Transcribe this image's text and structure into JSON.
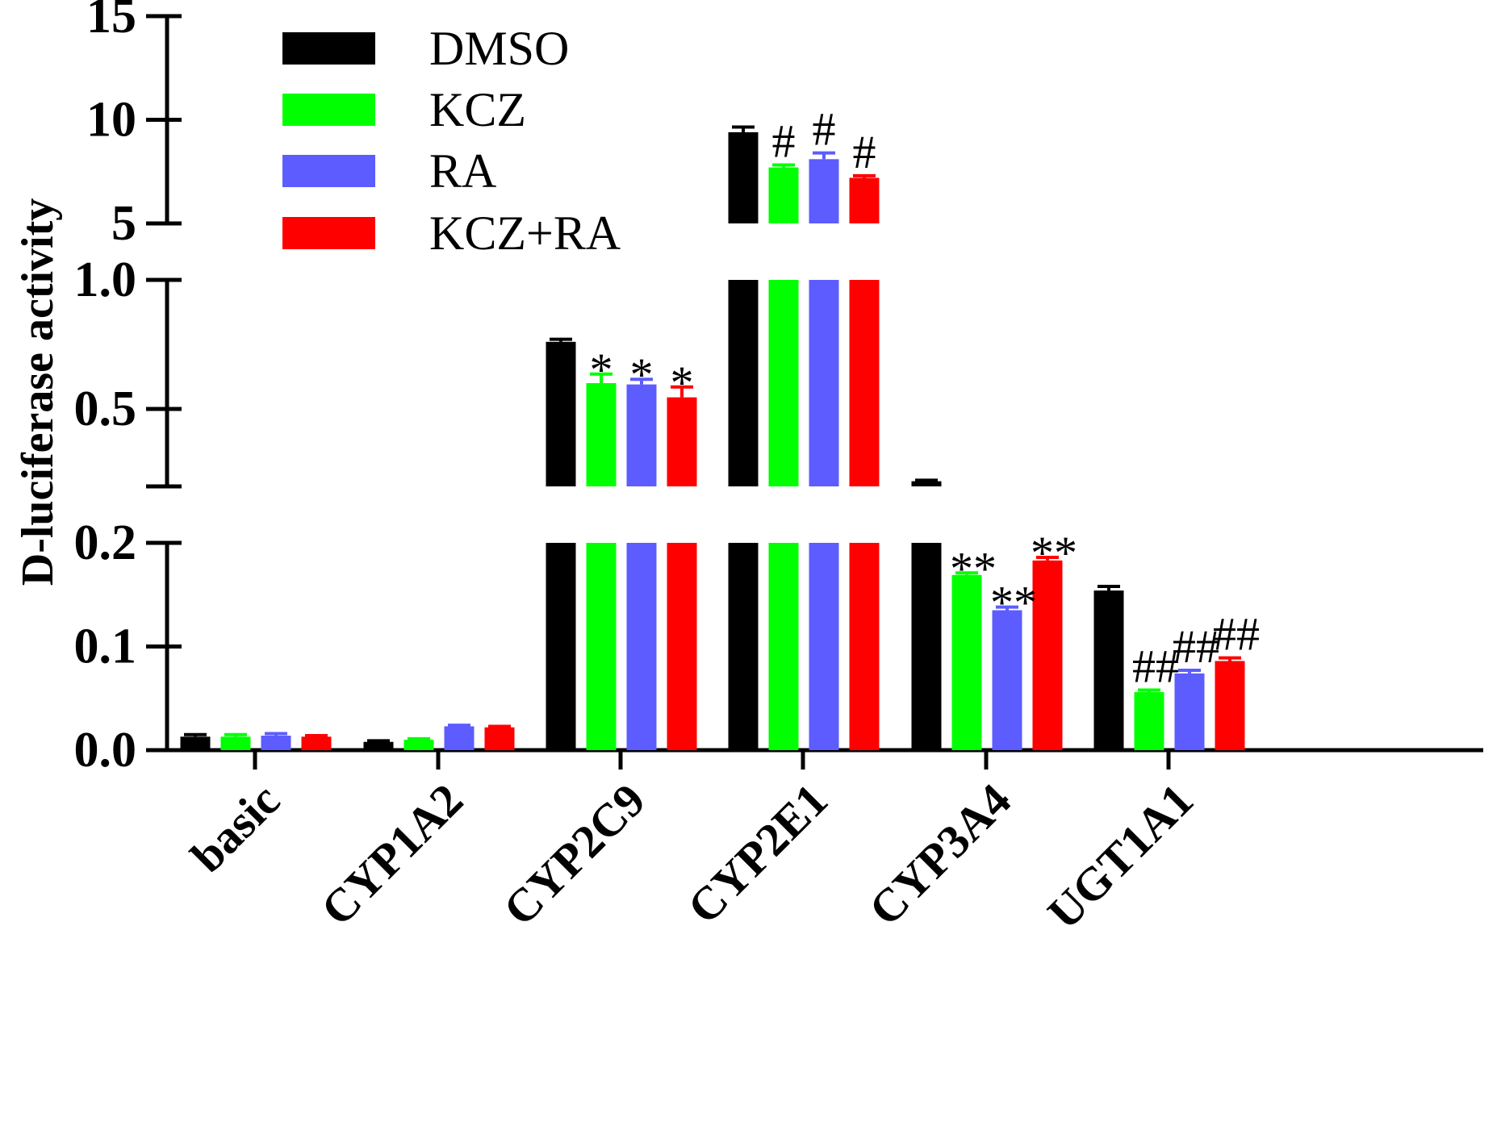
{
  "chart_data": {
    "type": "bar",
    "title": "",
    "xlabel": "",
    "ylabel": "D-luciferase activity",
    "categories": [
      "basic",
      "CYP1A2",
      "CYP2C9",
      "CYP2E1",
      "CYP3A4",
      "UGT1A1"
    ],
    "series": [
      {
        "name": "DMSO",
        "color": "#000000",
        "values": [
          0.013,
          0.008,
          0.76,
          9.4,
          0.22,
          0.154
        ],
        "errors": [
          0.002,
          0.001,
          0.01,
          0.25,
          0.004,
          0.004
        ]
      },
      {
        "name": "KCZ",
        "color": "#00ff00",
        "values": [
          0.013,
          0.01,
          0.6,
          7.7,
          0.169,
          0.056
        ],
        "errors": [
          0.002,
          0.001,
          0.035,
          0.12,
          0.002,
          0.002
        ]
      },
      {
        "name": "RA",
        "color": "#5c5cff",
        "values": [
          0.014,
          0.023,
          0.595,
          8.1,
          0.135,
          0.074
        ],
        "errors": [
          0.002,
          0.001,
          0.02,
          0.3,
          0.003,
          0.003
        ]
      },
      {
        "name": "KCZ+RA",
        "color": "#ff0000",
        "values": [
          0.013,
          0.022,
          0.545,
          7.2,
          0.183,
          0.086
        ],
        "errors": [
          0.001,
          0.001,
          0.04,
          0.1,
          0.003,
          0.003
        ]
      }
    ],
    "y_segments": [
      {
        "range": [
          0,
          0.2
        ],
        "ticks": [
          0.0,
          0.1,
          0.2
        ],
        "tick_labels": [
          "0.0",
          "0.1",
          "0.2"
        ]
      },
      {
        "range": [
          0.2,
          1.0
        ],
        "ticks": [
          0.5,
          1.0
        ],
        "tick_labels": [
          "0.5",
          "1.0"
        ]
      },
      {
        "range": [
          5,
          15
        ],
        "ticks": [
          5,
          10,
          15
        ],
        "tick_labels": [
          "5",
          "10",
          "15"
        ]
      }
    ],
    "annotations": [
      {
        "category": "CYP2C9",
        "series": "KCZ",
        "text": "*"
      },
      {
        "category": "CYP2C9",
        "series": "RA",
        "text": "*"
      },
      {
        "category": "CYP2C9",
        "series": "KCZ+RA",
        "text": "*"
      },
      {
        "category": "CYP2E1",
        "series": "KCZ",
        "text": "#"
      },
      {
        "category": "CYP2E1",
        "series": "RA",
        "text": "#"
      },
      {
        "category": "CYP2E1",
        "series": "KCZ+RA",
        "text": "#"
      },
      {
        "category": "CYP3A4",
        "series": "KCZ",
        "text": "**"
      },
      {
        "category": "CYP3A4",
        "series": "RA",
        "text": "**"
      },
      {
        "category": "CYP3A4",
        "series": "KCZ+RA",
        "text": "**"
      },
      {
        "category": "UGT1A1",
        "series": "KCZ",
        "text": "##"
      },
      {
        "category": "UGT1A1",
        "series": "RA",
        "text": "##"
      },
      {
        "category": "UGT1A1",
        "series": "KCZ+RA",
        "text": "##"
      }
    ],
    "legend": {
      "position": "top-left",
      "entries": [
        "DMSO",
        "KCZ",
        "RA",
        "KCZ+RA"
      ]
    },
    "grid": false
  }
}
